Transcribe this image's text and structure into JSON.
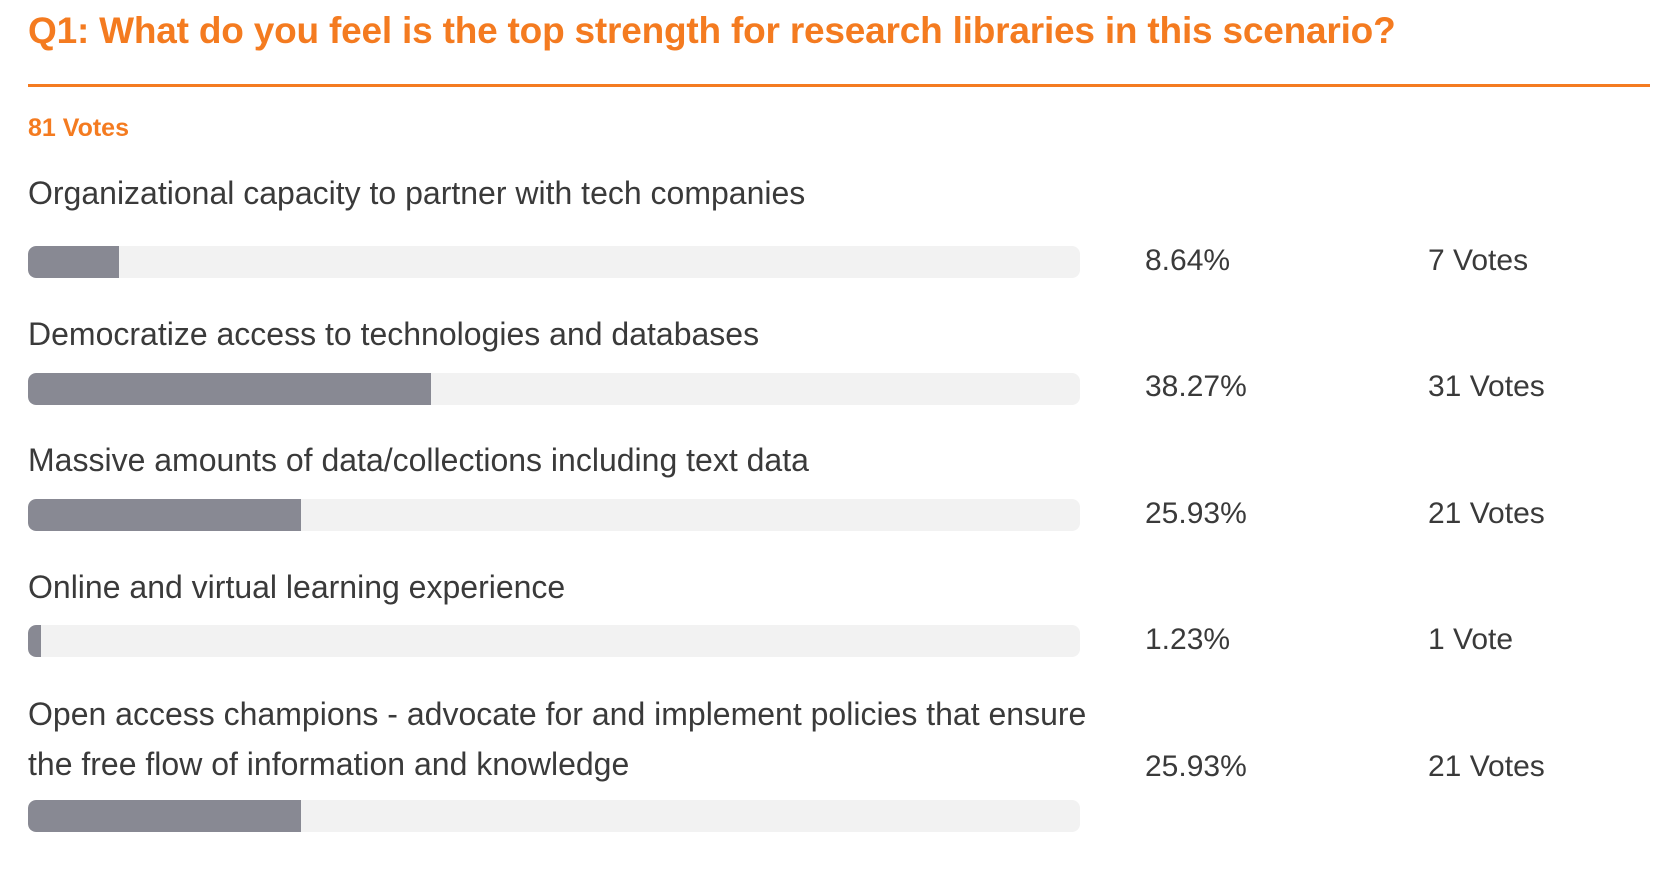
{
  "chart_data": {
    "type": "bar",
    "title": "Q1: What do you feel is the top strength for research libraries in this scenario?",
    "total_votes_label": "81 Votes",
    "categories": [
      "Organizational capacity to partner with tech companies",
      "Democratize access to technologies and databases",
      "Massive amounts of data/collections including text data",
      "Online and virtual learning experience",
      "Open access champions - advocate for and implement policies that ensure the free flow of information and knowledge"
    ],
    "values": [
      8.64,
      38.27,
      25.93,
      1.23,
      25.93
    ],
    "percent_labels": [
      "8.64%",
      "38.27%",
      "25.93%",
      "1.23%",
      "25.93%"
    ],
    "vote_counts": [
      7,
      31,
      21,
      1,
      21
    ],
    "vote_labels": [
      "7 Votes",
      "31 Votes",
      "21 Votes",
      "1 Vote",
      "21 Votes"
    ],
    "ylim": [
      0,
      100
    ]
  },
  "colors": {
    "accent": "#f47b20",
    "bar_fill": "#888993",
    "bar_track": "#f2f2f2",
    "text": "#3a3a3a"
  }
}
